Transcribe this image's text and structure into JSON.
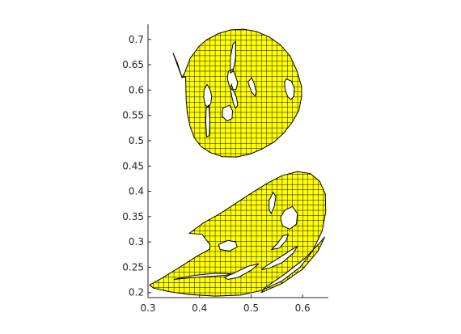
{
  "colors": {
    "fill": "#ffff00",
    "grid": "#000000",
    "outline": "#000000",
    "axis": "#262626",
    "background": "#ffffff"
  },
  "chart_data": {
    "type": "area",
    "title": "",
    "xlabel": "",
    "ylabel": "",
    "xlim": [
      0.3,
      0.65
    ],
    "ylim": [
      0.19,
      0.73
    ],
    "x_ticks": [
      0.3,
      0.4,
      0.5,
      0.6
    ],
    "x_tick_labels": [
      "0.3",
      "0.4",
      "0.5",
      "0.6"
    ],
    "y_ticks": [
      0.2,
      0.25,
      0.3,
      0.35,
      0.4,
      0.45,
      0.5,
      0.55,
      0.6,
      0.65,
      0.7
    ],
    "y_tick_labels": [
      "0.2",
      "0.25",
      "0.3",
      "0.35",
      "0.4",
      "0.45",
      "0.5",
      "0.55",
      "0.6",
      "0.65",
      "0.7"
    ],
    "grid": "filled shapes drawn with hatch grid",
    "hatch_spacing": 0.01,
    "shapes": [
      {
        "outer": [
          [
            0.3485,
            0.6731
          ],
          [
            0.3573,
            0.6529
          ],
          [
            0.3659,
            0.6248
          ],
          [
            0.3704,
            0.6323
          ],
          [
            0.3818,
            0.6628
          ],
          [
            0.3989,
            0.6864
          ],
          [
            0.4128,
            0.6989
          ],
          [
            0.4369,
            0.7118
          ],
          [
            0.4611,
            0.7189
          ],
          [
            0.4858,
            0.7203
          ],
          [
            0.5106,
            0.7157
          ],
          [
            0.5353,
            0.7049
          ],
          [
            0.5575,
            0.6889
          ],
          [
            0.5756,
            0.6674
          ],
          [
            0.5888,
            0.6386
          ],
          [
            0.598,
            0.607
          ],
          [
            0.598,
            0.5867
          ],
          [
            0.5929,
            0.5599
          ],
          [
            0.5807,
            0.5375
          ],
          [
            0.5637,
            0.5152
          ],
          [
            0.5445,
            0.4973
          ],
          [
            0.5207,
            0.4834
          ],
          [
            0.4981,
            0.4736
          ],
          [
            0.4717,
            0.4679
          ],
          [
            0.4447,
            0.4684
          ],
          [
            0.4204,
            0.4766
          ],
          [
            0.4027,
            0.4887
          ],
          [
            0.3897,
            0.5059
          ],
          [
            0.3814,
            0.5288
          ],
          [
            0.3763,
            0.5543
          ],
          [
            0.374,
            0.5838
          ],
          [
            0.3735,
            0.6072
          ],
          [
            0.3731,
            0.6261
          ],
          [
            0.3659,
            0.6248
          ]
        ],
        "holes": [
          [
            [
              0.4146,
              0.611
            ],
            [
              0.42,
              0.602
            ],
            [
              0.4237,
              0.588
            ],
            [
              0.4218,
              0.573
            ],
            [
              0.4162,
              0.566
            ],
            [
              0.411,
              0.571
            ],
            [
              0.408,
              0.586
            ],
            [
              0.409,
              0.601
            ]
          ],
          [
            [
              0.464,
              0.641
            ],
            [
              0.47,
              0.628
            ],
            [
              0.474,
              0.614
            ],
            [
              0.471,
              0.602
            ],
            [
              0.464,
              0.6
            ],
            [
              0.458,
              0.607
            ],
            [
              0.454,
              0.623
            ],
            [
              0.456,
              0.637
            ]
          ],
          [
            [
              0.462,
              0.611
            ],
            [
              0.466,
              0.598
            ],
            [
              0.472,
              0.584
            ],
            [
              0.474,
              0.57
            ],
            [
              0.47,
              0.564
            ],
            [
              0.466,
              0.573
            ],
            [
              0.462,
              0.59
            ],
            [
              0.46,
              0.603
            ]
          ],
          [
            [
              0.568,
              0.622
            ],
            [
              0.578,
              0.618
            ],
            [
              0.584,
              0.604
            ],
            [
              0.583,
              0.588
            ],
            [
              0.577,
              0.581
            ],
            [
              0.571,
              0.587
            ],
            [
              0.566,
              0.601
            ],
            [
              0.565,
              0.615
            ]
          ],
          [
            [
              0.494,
              0.616
            ],
            [
              0.501,
              0.624
            ],
            [
              0.506,
              0.613
            ],
            [
              0.51,
              0.596
            ],
            [
              0.508,
              0.588
            ],
            [
              0.501,
              0.596
            ]
          ],
          [
            [
              0.465,
              0.691
            ],
            [
              0.47,
              0.696
            ],
            [
              0.47,
              0.664
            ],
            [
              0.465,
              0.637
            ],
            [
              0.46,
              0.634
            ],
            [
              0.46,
              0.665
            ]
          ],
          [
            [
              0.413,
              0.565
            ],
            [
              0.418,
              0.57
            ],
            [
              0.42,
              0.54
            ],
            [
              0.419,
              0.51
            ],
            [
              0.414,
              0.508
            ],
            [
              0.412,
              0.537
            ]
          ],
          [
            [
              0.445,
              0.564
            ],
            [
              0.458,
              0.57
            ],
            [
              0.464,
              0.559
            ],
            [
              0.463,
              0.544
            ],
            [
              0.454,
              0.539
            ],
            [
              0.444,
              0.548
            ]
          ]
        ]
      },
      {
        "outer": [
          [
            0.303,
            0.215
          ],
          [
            0.328,
            0.229
          ],
          [
            0.363,
            0.251
          ],
          [
            0.395,
            0.272
          ],
          [
            0.42,
            0.286
          ],
          [
            0.42,
            0.295
          ],
          [
            0.405,
            0.315
          ],
          [
            0.38,
            0.317
          ],
          [
            0.408,
            0.338
          ],
          [
            0.44,
            0.356
          ],
          [
            0.47,
            0.376
          ],
          [
            0.5,
            0.396
          ],
          [
            0.53,
            0.415
          ],
          [
            0.56,
            0.431
          ],
          [
            0.59,
            0.439
          ],
          [
            0.615,
            0.435
          ],
          [
            0.633,
            0.42
          ],
          [
            0.644,
            0.395
          ],
          [
            0.645,
            0.36
          ],
          [
            0.638,
            0.322
          ],
          [
            0.62,
            0.283
          ],
          [
            0.595,
            0.25
          ],
          [
            0.56,
            0.223
          ],
          [
            0.52,
            0.204
          ],
          [
            0.48,
            0.195
          ],
          [
            0.43,
            0.193
          ],
          [
            0.38,
            0.196
          ],
          [
            0.34,
            0.202
          ],
          [
            0.31,
            0.209
          ]
        ],
        "holes": [
          [
            [
              0.565,
              0.362
            ],
            [
              0.58,
              0.37
            ],
            [
              0.59,
              0.356
            ],
            [
              0.588,
              0.335
            ],
            [
              0.575,
              0.325
            ],
            [
              0.561,
              0.332
            ],
            [
              0.557,
              0.348
            ]
          ],
          [
            [
              0.535,
              0.382
            ],
            [
              0.543,
              0.398
            ],
            [
              0.548,
              0.39
            ],
            [
              0.545,
              0.37
            ],
            [
              0.539,
              0.356
            ],
            [
              0.535,
              0.364
            ]
          ],
          [
            [
              0.437,
              0.295
            ],
            [
              0.455,
              0.303
            ],
            [
              0.47,
              0.3
            ],
            [
              0.473,
              0.29
            ],
            [
              0.458,
              0.282
            ],
            [
              0.44,
              0.285
            ]
          ],
          [
            [
              0.52,
              0.245
            ],
            [
              0.535,
              0.248
            ],
            [
              0.56,
              0.259
            ],
            [
              0.582,
              0.278
            ],
            [
              0.59,
              0.292
            ],
            [
              0.576,
              0.283
            ],
            [
              0.552,
              0.267
            ],
            [
              0.53,
              0.253
            ]
          ],
          [
            [
              0.54,
              0.285
            ],
            [
              0.552,
              0.298
            ],
            [
              0.562,
              0.312
            ],
            [
              0.572,
              0.315
            ],
            [
              0.568,
              0.303
            ],
            [
              0.555,
              0.288
            ]
          ],
          [
            [
              0.455,
              0.226
            ],
            [
              0.475,
              0.23
            ],
            [
              0.5,
              0.244
            ],
            [
              0.515,
              0.257
            ],
            [
              0.495,
              0.252
            ],
            [
              0.47,
              0.24
            ],
            [
              0.448,
              0.23
            ]
          ],
          [
            [
              0.52,
              0.2
            ],
            [
              0.56,
              0.218
            ],
            [
              0.6,
              0.246
            ],
            [
              0.63,
              0.282
            ],
            [
              0.643,
              0.31
            ],
            [
              0.635,
              0.3
            ],
            [
              0.605,
              0.268
            ],
            [
              0.565,
              0.236
            ],
            [
              0.525,
              0.208
            ]
          ],
          [
            [
              0.35,
              0.226
            ],
            [
              0.38,
              0.229
            ],
            [
              0.42,
              0.232
            ],
            [
              0.45,
              0.234
            ],
            [
              0.465,
              0.237
            ],
            [
              0.43,
              0.238
            ],
            [
              0.39,
              0.234
            ]
          ]
        ]
      }
    ]
  }
}
